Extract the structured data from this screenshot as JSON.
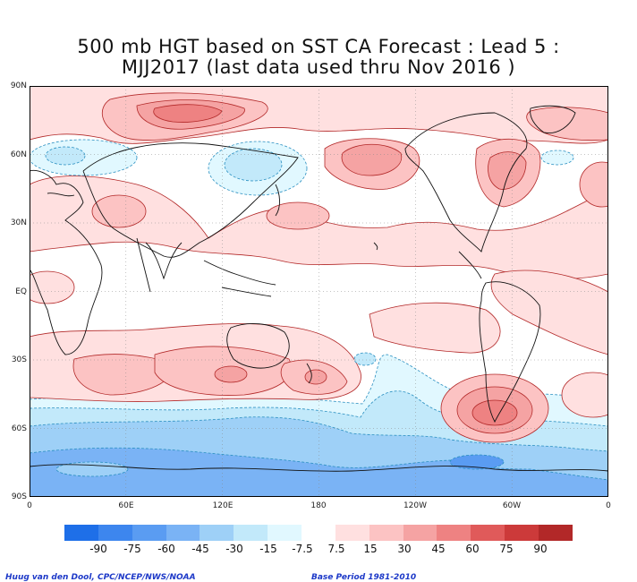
{
  "title": {
    "line1": "500 mb HGT based on SST CA Forecast : Lead 5 :",
    "line2": "MJJ2017 (last data used thru Nov 2016 )"
  },
  "axes": {
    "y_ticks": [
      "90N",
      "60N",
      "30N",
      "EQ",
      "30S",
      "60S",
      "90S"
    ],
    "x_ticks": [
      "0",
      "60E",
      "120E",
      "180",
      "120W",
      "60W",
      "0"
    ]
  },
  "legend": {
    "labels": [
      "-90",
      "-75",
      "-60",
      "-45",
      "-30",
      "-15",
      "-7.5",
      "7.5",
      "15",
      "30",
      "45",
      "60",
      "75",
      "90"
    ],
    "colors": [
      "#1e6fe8",
      "#3d86ee",
      "#5a9cf2",
      "#7ab3f5",
      "#9ed0f7",
      "#c2e9fa",
      "#e1f8ff",
      "#ffffff",
      "#ffe0e0",
      "#fcc3c3",
      "#f5a3a3",
      "#ee8282",
      "#e05a5a",
      "#cc3a3a",
      "#b22828"
    ]
  },
  "footer": {
    "left": "Huug van den Dool, CPC/NCEP/NWS/NOAA",
    "right": "Base Period 1981-2010"
  }
}
